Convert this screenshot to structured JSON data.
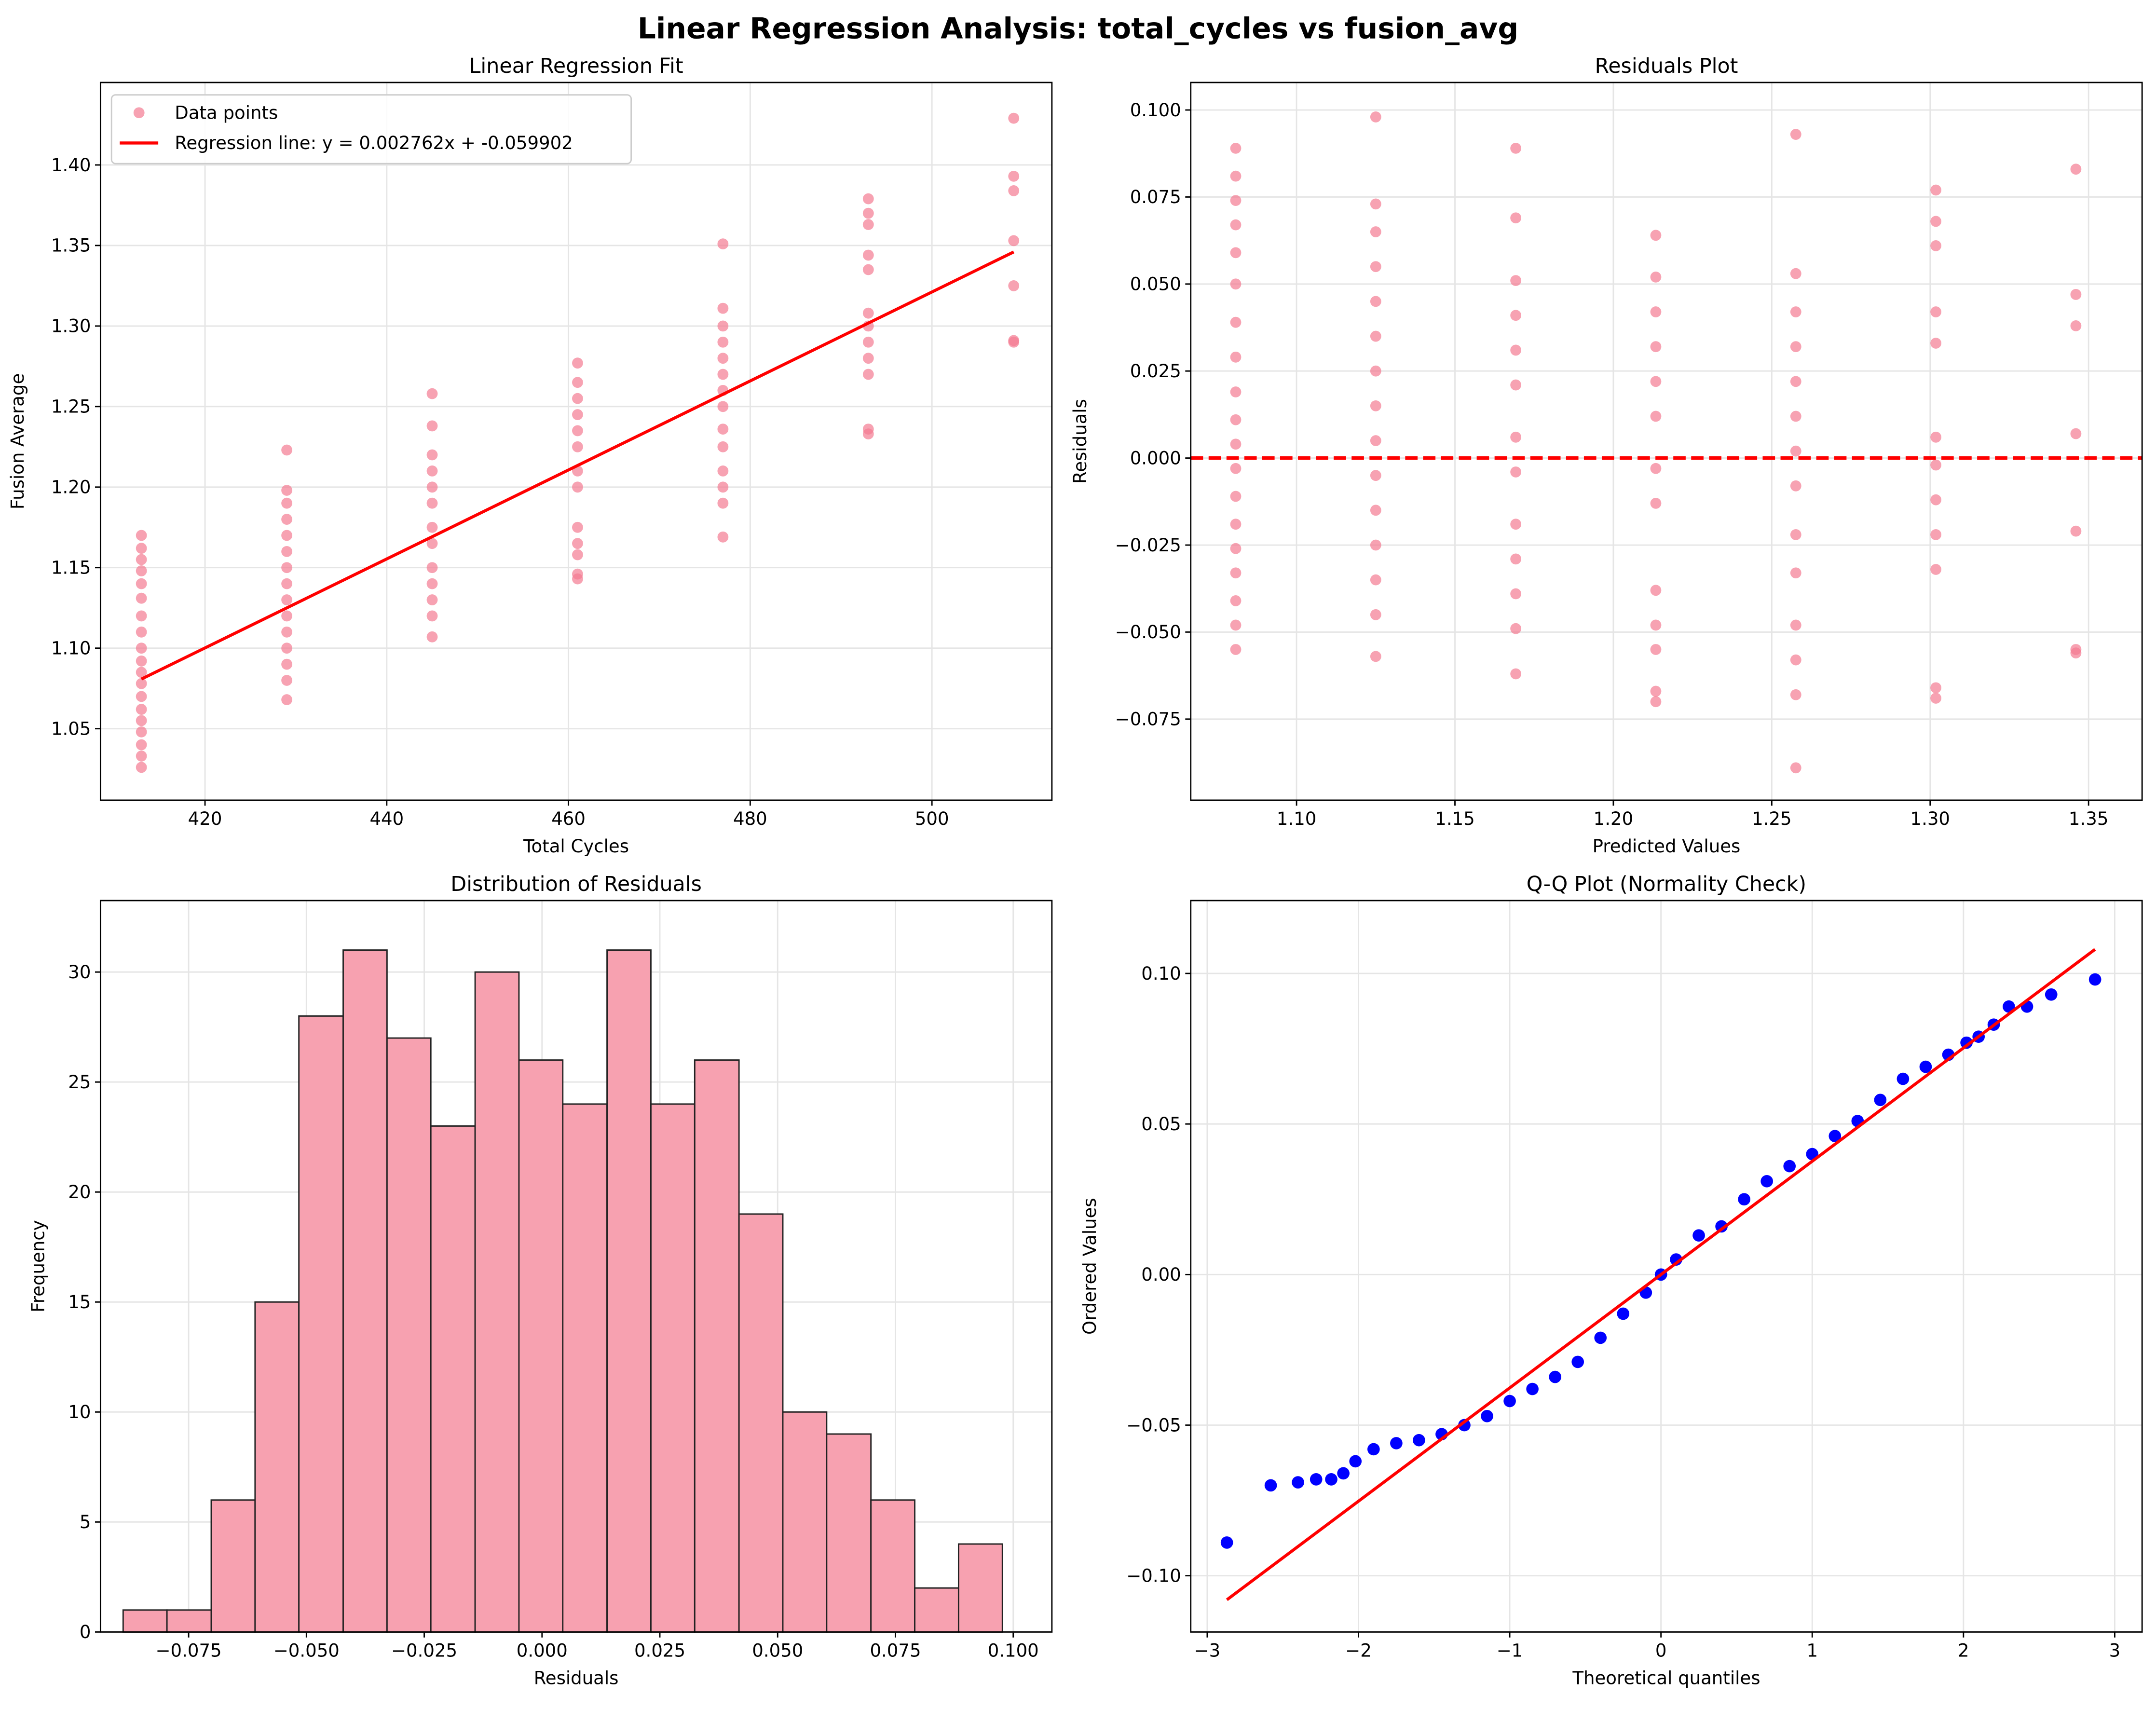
{
  "title": "Linear Regression Analysis: total_cycles vs fusion_avg",
  "chart_data": [
    {
      "type": "scatter",
      "title": "Linear Regression Fit",
      "xlabel": "Total Cycles",
      "ylabel": "Fusion Average",
      "xlim": [
        408.5,
        513.2
      ],
      "ylim": [
        1.0056,
        1.4512
      ],
      "xticks": [
        420,
        440,
        460,
        480,
        500
      ],
      "yticks": [
        1.05,
        {
          "value": 1.1,
          "label": "1.10"
        },
        1.15,
        {
          "value": 1.2,
          "label": "1.20"
        },
        1.25,
        {
          "value": 1.3,
          "label": "1.30"
        },
        1.35,
        {
          "value": 1.4,
          "label": "1.40"
        }
      ],
      "grid": true,
      "legend": "upper left",
      "series": [
        {
          "name": "Data points",
          "kind": "scatter",
          "color": "#f37b92",
          "groups": [
            {
              "x": 413,
              "values": [
                1.17,
                1.162,
                1.155,
                1.148,
                1.14,
                1.131,
                1.12,
                1.11,
                1.1,
                1.092,
                1.085,
                1.078,
                1.07,
                1.062,
                1.055,
                1.048,
                1.04,
                1.033,
                1.026
              ]
            },
            {
              "x": 429,
              "values": [
                1.223,
                1.198,
                1.19,
                1.18,
                1.17,
                1.16,
                1.15,
                1.14,
                1.13,
                1.12,
                1.11,
                1.1,
                1.09,
                1.08,
                1.068
              ]
            },
            {
              "x": 445,
              "values": [
                1.258,
                1.238,
                1.22,
                1.21,
                1.2,
                1.19,
                1.175,
                1.165,
                1.15,
                1.14,
                1.13,
                1.12,
                1.107
              ]
            },
            {
              "x": 461,
              "values": [
                1.277,
                1.265,
                1.255,
                1.245,
                1.235,
                1.225,
                1.21,
                1.2,
                1.175,
                1.165,
                1.158,
                1.146,
                1.143
              ]
            },
            {
              "x": 477,
              "values": [
                1.351,
                1.311,
                1.3,
                1.29,
                1.28,
                1.27,
                1.26,
                1.25,
                1.236,
                1.225,
                1.21,
                1.2,
                1.19,
                1.169
              ]
            },
            {
              "x": 493,
              "values": [
                1.379,
                1.37,
                1.363,
                1.344,
                1.335,
                1.308,
                1.3,
                1.29,
                1.28,
                1.27,
                1.236,
                1.233
              ]
            },
            {
              "x": 509,
              "values": [
                1.429,
                1.393,
                1.384,
                1.353,
                1.325,
                1.291,
                1.29
              ]
            }
          ]
        },
        {
          "name": "Regression line: y = 0.002762x + -0.059902",
          "kind": "line",
          "color": "#ff0000",
          "x": [
            413,
            509
          ],
          "values": [
            1.0808,
            1.346
          ]
        }
      ]
    },
    {
      "type": "scatter",
      "title": "Residuals Plot",
      "xlabel": "Predicted Values",
      "ylabel": "Residuals",
      "xlim": [
        1.0666,
        1.3669
      ],
      "ylim": [
        -0.0983,
        0.1079
      ],
      "xticks": [
        {
          "value": 1.1,
          "label": "1.10"
        },
        1.15,
        {
          "value": 1.2,
          "label": "1.20"
        },
        1.25,
        {
          "value": 1.3,
          "label": "1.30"
        },
        1.35
      ],
      "yticks": [
        {
          "value": -0.075,
          "label": "−0.075"
        },
        {
          "value": -0.05,
          "label": "−0.050"
        },
        {
          "value": -0.025,
          "label": "−0.025"
        },
        {
          "value": 0,
          "label": "0.000"
        },
        0.025,
        {
          "value": 0.05,
          "label": "0.050"
        },
        0.075,
        {
          "value": 0.1,
          "label": "0.100"
        }
      ],
      "grid": true,
      "hline": {
        "value": 0,
        "color": "#ff0000"
      },
      "series": [
        {
          "kind": "scatter",
          "color": "#f37b92",
          "groups": [
            {
              "x": 1.0808,
              "values": [
                0.089,
                0.081,
                0.074,
                0.067,
                0.059,
                0.05,
                0.039,
                0.029,
                0.019,
                0.011,
                0.004,
                -0.003,
                -0.011,
                -0.019,
                -0.026,
                -0.033,
                -0.041,
                -0.048,
                -0.055
              ]
            },
            {
              "x": 1.125,
              "values": [
                0.098,
                0.073,
                0.065,
                0.055,
                0.045,
                0.035,
                0.025,
                0.015,
                0.005,
                -0.005,
                -0.015,
                -0.025,
                -0.035,
                -0.045,
                -0.057
              ]
            },
            {
              "x": 1.1692,
              "values": [
                0.089,
                0.069,
                0.051,
                0.041,
                0.031,
                0.021,
                0.006,
                -0.004,
                -0.019,
                -0.029,
                -0.039,
                -0.049,
                -0.062
              ]
            },
            {
              "x": 1.2134,
              "values": [
                0.064,
                0.052,
                0.042,
                0.032,
                0.022,
                0.012,
                -0.003,
                -0.013,
                -0.038,
                -0.048,
                -0.055,
                -0.067,
                -0.07
              ]
            },
            {
              "x": 1.2576,
              "values": [
                0.093,
                0.053,
                0.042,
                0.032,
                0.022,
                0.012,
                0.002,
                -0.008,
                -0.022,
                -0.033,
                -0.048,
                -0.058,
                -0.068,
                -0.089
              ]
            },
            {
              "x": 1.3018,
              "values": [
                0.077,
                0.068,
                0.061,
                0.042,
                0.033,
                0.006,
                -0.002,
                -0.012,
                -0.022,
                -0.032,
                -0.066,
                -0.069
              ]
            },
            {
              "x": 1.346,
              "values": [
                0.083,
                0.047,
                0.038,
                0.007,
                -0.021,
                -0.055,
                -0.056
              ]
            }
          ]
        }
      ]
    },
    {
      "type": "histogram",
      "title": "Distribution of Residuals",
      "xlabel": "Residuals",
      "ylabel": "Frequency",
      "xlim": [
        -0.0937,
        0.1082
      ],
      "ylim": [
        0,
        33.25
      ],
      "xticks": [
        {
          "value": -0.075,
          "label": "−0.075"
        },
        {
          "value": -0.05,
          "label": "−0.050"
        },
        {
          "value": -0.025,
          "label": "−0.025"
        },
        {
          "value": 0,
          "label": "0.000"
        },
        0.025,
        {
          "value": 0.05,
          "label": "0.050"
        },
        0.075,
        {
          "value": 0.1,
          "label": "0.100"
        }
      ],
      "yticks": [
        0,
        5,
        10,
        15,
        20,
        25,
        30
      ],
      "grid": true,
      "color": "#f7a1b0",
      "edgecolor": "#222222",
      "bins": [
        -0.0889,
        -0.0796,
        -0.0702,
        -0.0609,
        -0.0516,
        -0.0422,
        -0.0329,
        -0.0236,
        -0.0142,
        -0.0049,
        0.0044,
        0.0138,
        0.0231,
        0.0324,
        0.0418,
        0.0511,
        0.0604,
        0.0698,
        0.0791,
        0.0884,
        0.0977
      ],
      "counts": [
        1,
        1,
        6,
        15,
        28,
        31,
        27,
        23,
        30,
        26,
        24,
        31,
        24,
        26,
        19,
        10,
        9,
        6,
        2,
        4
      ]
    },
    {
      "type": "scatter",
      "title": "Q-Q Plot (Normality Check)",
      "xlabel": "Theoretical quantiles",
      "ylabel": "Ordered Values",
      "xlim": [
        -3.109,
        3.181
      ],
      "ylim": [
        -0.1187,
        0.1242
      ],
      "xticks": [
        {
          "value": -3,
          "label": "−3"
        },
        {
          "value": -2,
          "label": "−2"
        },
        {
          "value": -1,
          "label": "−1"
        },
        0,
        1,
        2,
        3
      ],
      "yticks": [
        {
          "value": -0.1,
          "label": "−0.10"
        },
        {
          "value": -0.05,
          "label": "−0.05"
        },
        {
          "value": 0,
          "label": "0.00"
        },
        0.05,
        {
          "value": 0.1,
          "label": "0.10"
        }
      ],
      "grid": true,
      "series": [
        {
          "kind": "scatter",
          "color": "#0000ff",
          "x": [
            -2.87,
            -2.58,
            -2.4,
            -2.28,
            -2.18,
            -2.1,
            -2.02,
            -1.9,
            -1.75,
            -1.6,
            -1.45,
            -1.3,
            -1.15,
            -1.0,
            -0.85,
            -0.7,
            -0.55,
            -0.4,
            -0.25,
            -0.1,
            0.0,
            0.1,
            0.25,
            0.4,
            0.55,
            0.7,
            0.85,
            1.0,
            1.15,
            1.3,
            1.45,
            1.6,
            1.75,
            1.9,
            2.02,
            2.1,
            2.2,
            2.3,
            2.42,
            2.58,
            2.87
          ],
          "values": [
            -0.089,
            -0.07,
            -0.069,
            -0.068,
            -0.068,
            -0.066,
            -0.062,
            -0.058,
            -0.056,
            -0.055,
            -0.053,
            -0.05,
            -0.047,
            -0.042,
            -0.038,
            -0.034,
            -0.029,
            -0.021,
            -0.013,
            -0.006,
            0.0,
            0.005,
            0.013,
            0.016,
            0.025,
            0.031,
            0.036,
            0.04,
            0.046,
            0.051,
            0.058,
            0.065,
            0.069,
            0.073,
            0.077,
            0.079,
            0.083,
            0.089,
            0.089,
            0.093,
            0.098
          ]
        },
        {
          "kind": "line",
          "color": "#ff0000",
          "x": [
            -2.87,
            2.87
          ],
          "values": [
            -0.108,
            0.108
          ]
        }
      ]
    }
  ]
}
